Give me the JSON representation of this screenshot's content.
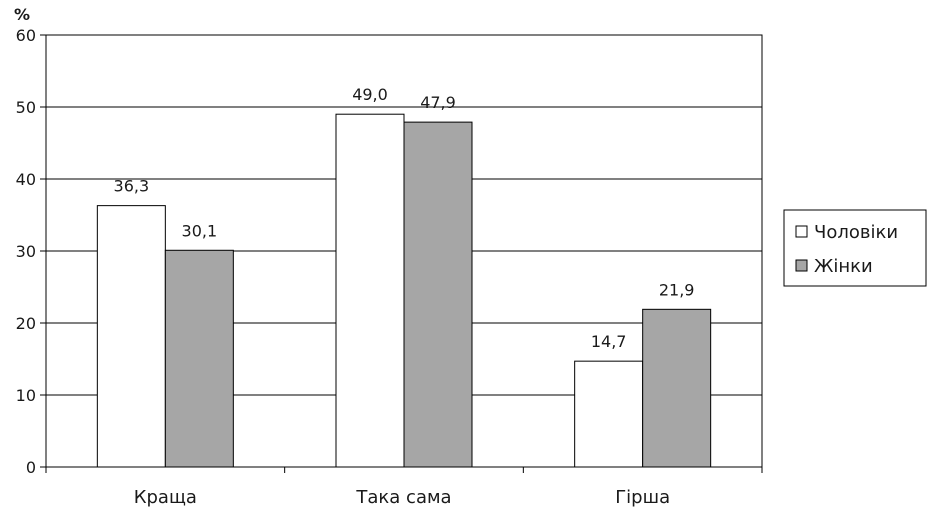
{
  "chart_data": {
    "type": "bar",
    "ylabel": "%",
    "ylim": [
      0,
      60
    ],
    "yticks": [
      0,
      10,
      20,
      30,
      40,
      50,
      60
    ],
    "ytick_labels": [
      "0",
      "10",
      "20",
      "30",
      "40",
      "50",
      "60"
    ],
    "grid": true,
    "legend_position": "right",
    "categories": [
      "Краща",
      "Така сама",
      "Гірша"
    ],
    "series": [
      {
        "name": "Чоловіки",
        "color": "#ffffff",
        "values": [
          36.3,
          49.0,
          14.7
        ],
        "value_labels": [
          "36,3",
          "49,0",
          "14,7"
        ]
      },
      {
        "name": "Жінки",
        "color": "#a6a6a6",
        "values": [
          30.1,
          47.9,
          21.9
        ],
        "value_labels": [
          "30,1",
          "47,9",
          "21,9"
        ]
      }
    ]
  }
}
